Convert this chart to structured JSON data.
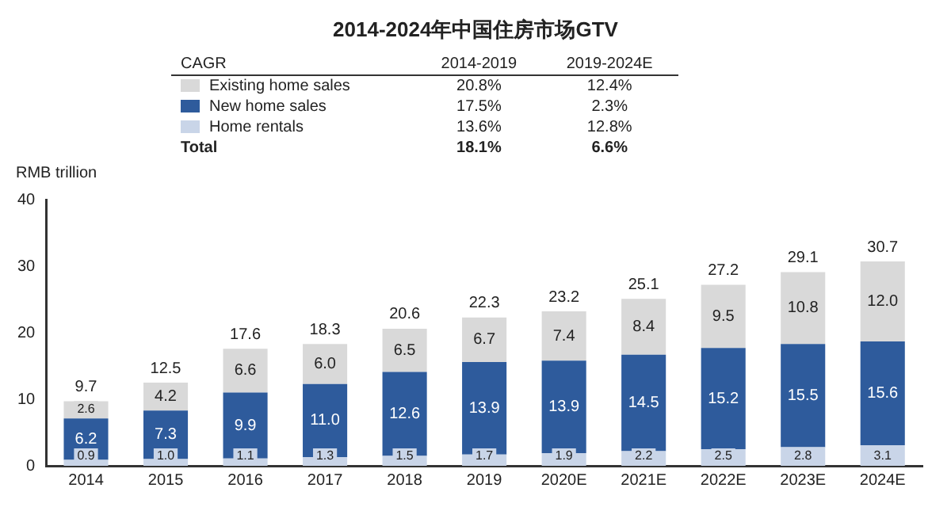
{
  "chart_data": {
    "type": "bar",
    "title": "2014-2024年中国住房市场GTV",
    "ylabel": "RMB trillion",
    "stacked": true,
    "legend": "top",
    "grid": false,
    "categories": [
      "2014",
      "2015",
      "2016",
      "2017",
      "2018",
      "2019",
      "2020E",
      "2021E",
      "2022E",
      "2023E",
      "2024E"
    ],
    "series": [
      {
        "name": "Home rentals",
        "color": "#c9d5e8",
        "values": [
          0.9,
          1.0,
          1.1,
          1.3,
          1.5,
          1.7,
          1.9,
          2.2,
          2.5,
          2.8,
          3.1
        ],
        "value_labels": [
          "0.9",
          "1.0",
          "1.1",
          "1.3",
          "1.5",
          "1.7",
          "1.9",
          "2.2",
          "2.5",
          "2.8",
          "3.1"
        ]
      },
      {
        "name": "New home sales",
        "color": "#2e5b9c",
        "values": [
          6.2,
          7.3,
          9.9,
          11.0,
          12.6,
          13.9,
          13.9,
          14.5,
          15.2,
          15.5,
          15.6
        ],
        "value_labels": [
          "6.2",
          "7.3",
          "9.9",
          "11.0",
          "12.6",
          "13.9",
          "13.9",
          "14.5",
          "15.2",
          "15.5",
          "15.6"
        ]
      },
      {
        "name": "Existing home sales",
        "color": "#d9d9d9",
        "values": [
          2.6,
          4.2,
          6.6,
          6.0,
          6.5,
          6.7,
          7.4,
          8.4,
          9.5,
          10.8,
          12.0
        ],
        "value_labels": [
          "2.6",
          "4.2",
          "6.6",
          "6.0",
          "6.5",
          "6.7",
          "7.4",
          "8.4",
          "9.5",
          "10.8",
          "12.0"
        ]
      }
    ],
    "totals": [
      "9.7",
      "12.5",
      "17.6",
      "18.3",
      "20.6",
      "22.3",
      "23.2",
      "25.1",
      "27.2",
      "29.1",
      "30.7"
    ],
    "ylim": [
      0,
      40
    ],
    "yticks": [
      0,
      10,
      20,
      30,
      40
    ],
    "annotations": [
      "CAGR",
      "2014-2019",
      "2019-2024E",
      "13.6%",
      "12.8%",
      "17.5%",
      "2.3%",
      "20.8%",
      "12.4%",
      "Total",
      "18.1%",
      "6.6%"
    ]
  }
}
